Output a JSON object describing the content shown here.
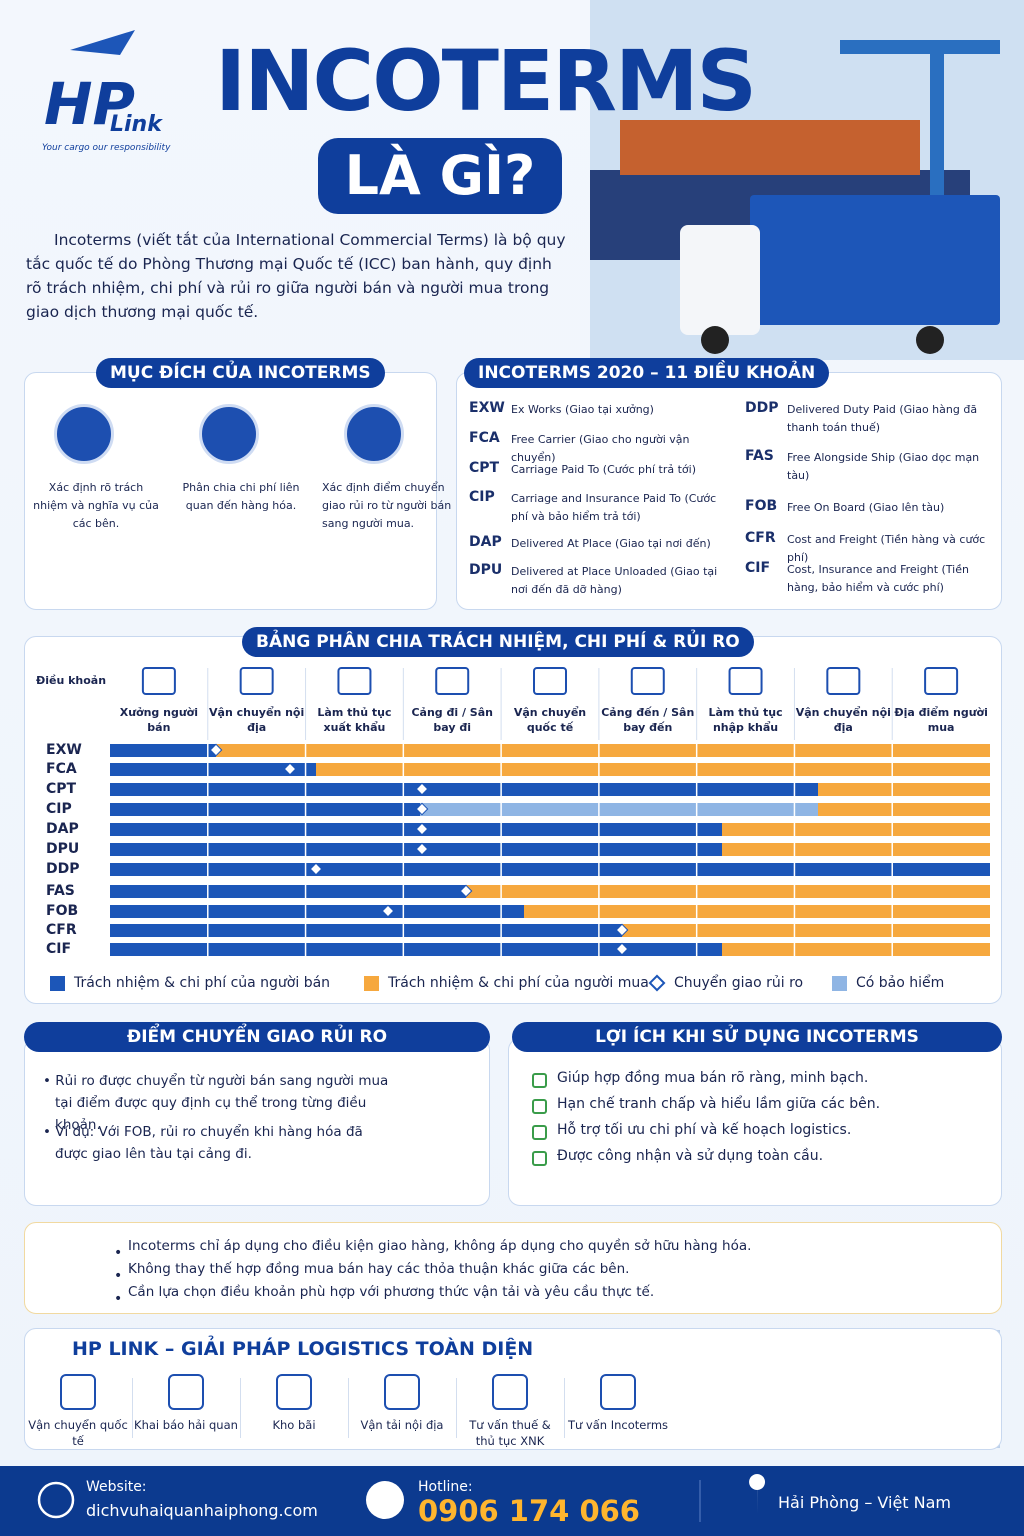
{
  "header": {
    "logo": "HP",
    "logo_sub": "Link",
    "tagline": "Your cargo our responsibility",
    "title": "INCOTERMS",
    "subtitle": "LÀ GÌ?",
    "intro": "Incoterms (viết tắt của International Commercial Terms) là bộ quy tắc quốc tế do Phòng Thương mại Quốc tế (ICC) ban hành, quy định rõ trách nhiệm, chi phí và rủi ro giữa người bán và người mua trong giao dịch thương mại quốc tế."
  },
  "purpose": {
    "title": "MỤC ĐÍCH CỦA INCOTERMS",
    "items": [
      "Xác định rõ trách nhiệm và nghĩa vụ của các bên.",
      "Phân chia chi phí liên quan đến hàng hóa.",
      "Xác định điểm chuyển giao rủi ro từ người bán sang người mua."
    ]
  },
  "terms2020": {
    "title": "INCOTERMS 2020 – 11 ĐIỀU KHOẢN",
    "items": [
      {
        "code": "EXW",
        "desc": "Ex Works (Giao tại xưởng)"
      },
      {
        "code": "FCA",
        "desc": "Free Carrier (Giao cho người vận chuyển)"
      },
      {
        "code": "CPT",
        "desc": "Carriage Paid To (Cước phí trả tới)"
      },
      {
        "code": "CIP",
        "desc": "Carriage and Insurance Paid To (Cước phí và bảo hiểm trả tới)"
      },
      {
        "code": "DAP",
        "desc": "Delivered At Place (Giao tại nơi đến)"
      },
      {
        "code": "DPU",
        "desc": "Delivered at Place Unloaded (Giao tại nơi đến đã dỡ hàng)"
      },
      {
        "code": "DDP",
        "desc": "Delivered Duty Paid (Giao hàng đã thanh toán thuế)"
      },
      {
        "code": "FAS",
        "desc": "Free Alongside Ship (Giao dọc mạn tàu)"
      },
      {
        "code": "FOB",
        "desc": "Free On Board (Giao lên tàu)"
      },
      {
        "code": "CFR",
        "desc": "Cost and Freight (Tiền hàng và cước phí)"
      },
      {
        "code": "CIF",
        "desc": "Cost, Insurance and Freight (Tiền hàng, bảo hiểm và cước phí)"
      }
    ]
  },
  "table": {
    "title": "BẢNG PHÂN CHIA TRÁCH NHIỆM, CHI PHÍ & RỦI RO",
    "corner": "Điều khoản",
    "columns": [
      "Xưởng người bán",
      "Vận chuyển nội địa",
      "Làm thủ tục xuất khẩu",
      "Cảng đi / Sân bay đi",
      "Vận chuyển quốc tế",
      "Cảng đến / Sân bay đến",
      "Làm thủ tục nhập khẩu",
      "Vận chuyển nội địa",
      "Địa điểm người mua"
    ],
    "rows": [
      "EXW",
      "FCA",
      "CPT",
      "CIP",
      "DAP",
      "DPU",
      "DDP",
      "FAS",
      "FOB",
      "CFR",
      "CIF"
    ],
    "legend": [
      "Trách nhiệm & chi phí của người bán",
      "Trách nhiệm & chi phí của người mua",
      "Chuyển giao rủi ro",
      "Có bảo hiểm"
    ]
  },
  "risk": {
    "title": "ĐIỂM CHUYỂN GIAO RỦI RO",
    "bullets": [
      "Rủi ro được chuyển từ người bán sang người mua tại điểm được quy định cụ thể trong từng điều khoản.",
      "Ví dụ: Với FOB, rủi ro chuyển khi hàng hóa đã được giao lên tàu tại cảng đi."
    ]
  },
  "benefits": {
    "title": "LỢI ÍCH KHI SỬ DỤNG INCOTERMS",
    "items": [
      "Giúp hợp đồng mua bán rõ ràng, minh bạch.",
      "Hạn chế tranh chấp và hiểu lầm giữa các bên.",
      "Hỗ trợ tối ưu chi phí và kế hoạch logistics.",
      "Được công nhận và sử dụng toàn cầu."
    ]
  },
  "notes": [
    "Incoterms chỉ áp dụng cho điều kiện giao hàng, không áp dụng cho quyền sở hữu hàng hóa.",
    "Không thay thế hợp đồng mua bán hay các thỏa thuận khác giữa các bên.",
    "Cần lựa chọn điều khoản phù hợp với phương thức vận tải và yêu cầu thực tế."
  ],
  "solutions": {
    "title": "HP LINK – GIẢI PHÁP LOGISTICS TOÀN DIỆN",
    "items": [
      "Vận chuyển quốc tế",
      "Khai báo hải quan",
      "Kho bãi",
      "Vận tải nội địa",
      "Tư vấn thuế & thủ tục XNK",
      "Tư vấn Incoterms"
    ]
  },
  "footer": {
    "website_label": "Website:",
    "website": "dichvuhaiquanhaiphong.com",
    "hotline_label": "Hotline:",
    "hotline": "0906 174 066",
    "location": "Hải Phòng – Việt Nam"
  }
}
